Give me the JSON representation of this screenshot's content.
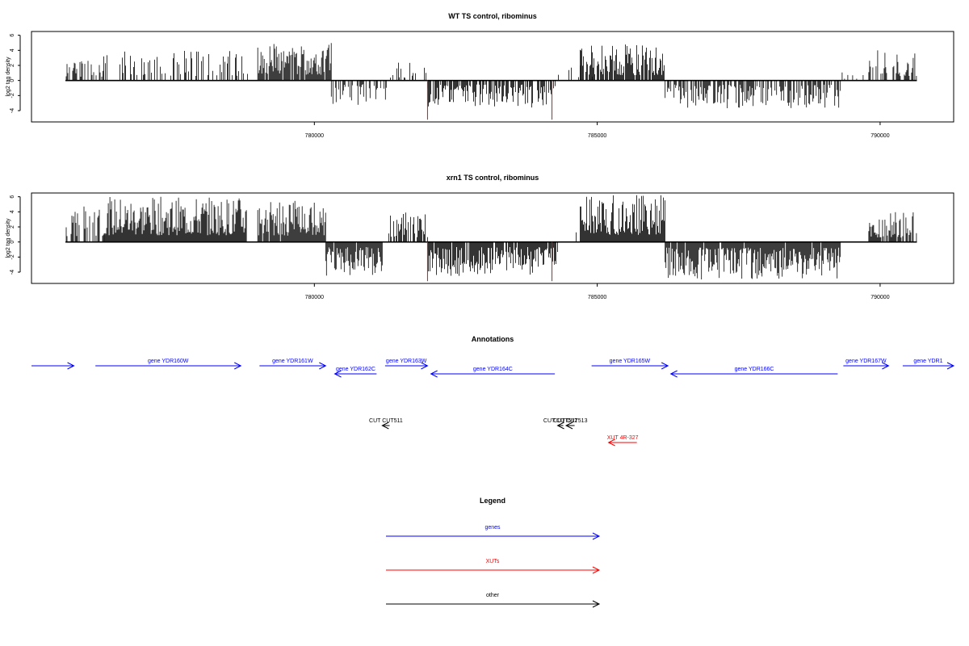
{
  "colors": {
    "gene": "#0000ff",
    "xut": "#ff0000",
    "other": "#000000",
    "bar": "#000000",
    "highlight": "#ff0000"
  },
  "chart_data": [
    {
      "type": "bar",
      "title": "WT TS control, ribominus",
      "ylabel": "log2 tag density",
      "xlim": [
        775000,
        791300
      ],
      "xrange_data": [
        775600,
        790650
      ],
      "ylim": [
        -5.5,
        6.5
      ],
      "yticks": [
        -4,
        -2,
        0,
        2,
        4,
        6
      ],
      "ytick_labels": [
        "-4",
        "-2",
        "0",
        "2",
        "4",
        "6"
      ],
      "xticks": [
        780000,
        785000,
        790000
      ],
      "xtick_labels": [
        "780000",
        "785000",
        "790000"
      ],
      "segments": [
        {
          "start": 775600,
          "end": 776250,
          "sign": 1,
          "max": 3.0,
          "density": 0.5,
          "seed": 11
        },
        {
          "start": 776250,
          "end": 779000,
          "sign": 1,
          "max": 4.0,
          "density": 0.28,
          "seed": 12
        },
        {
          "start": 779000,
          "end": 780300,
          "sign": 1,
          "max": 5.0,
          "density": 0.9,
          "seed": 13
        },
        {
          "start": 780300,
          "end": 781300,
          "sign": -1,
          "max": 3.3,
          "density": 0.55,
          "seed": 14
        },
        {
          "start": 781300,
          "end": 782000,
          "sign": 1,
          "max": 2.5,
          "density": 0.2,
          "seed": 15
        },
        {
          "start": 782000,
          "end": 784300,
          "sign": -1,
          "max": 3.6,
          "density": 0.75,
          "seed": 16
        },
        {
          "start": 784300,
          "end": 785000,
          "sign": 1,
          "max": 2.0,
          "density": 0.12,
          "seed": 17
        },
        {
          "start": 784700,
          "end": 786200,
          "sign": 1,
          "max": 4.8,
          "density": 0.85,
          "seed": 18
        },
        {
          "start": 786200,
          "end": 789300,
          "sign": -1,
          "max": 3.7,
          "density": 0.6,
          "seed": 19
        },
        {
          "start": 789300,
          "end": 789800,
          "sign": 1,
          "max": 1.5,
          "density": 0.12,
          "seed": 20
        },
        {
          "start": 789800,
          "end": 790650,
          "sign": 1,
          "max": 4.0,
          "density": 0.6,
          "seed": 21
        }
      ],
      "highlights": [
        {
          "x": 782000,
          "y": -5.2
        },
        {
          "x": 784200,
          "y": -5.2
        }
      ]
    },
    {
      "type": "bar",
      "title": "xrn1 TS control, ribominus",
      "ylabel": "log2 tag density",
      "xlim": [
        775000,
        791300
      ],
      "xrange_data": [
        775600,
        790650
      ],
      "ylim": [
        -5.5,
        6.5
      ],
      "yticks": [
        -4,
        -2,
        0,
        2,
        4,
        6
      ],
      "ytick_labels": [
        "-4",
        "-2",
        "0",
        "2",
        "4",
        "6"
      ],
      "xticks": [
        780000,
        785000,
        790000
      ],
      "xtick_labels": [
        "780000",
        "785000",
        "790000"
      ],
      "segments": [
        {
          "start": 775600,
          "end": 776300,
          "sign": 1,
          "max": 5.0,
          "density": 0.5,
          "seed": 31
        },
        {
          "start": 776300,
          "end": 778800,
          "sign": 1,
          "max": 6.0,
          "density": 1.0,
          "seed": 32
        },
        {
          "start": 779000,
          "end": 780200,
          "sign": 1,
          "max": 5.5,
          "density": 0.95,
          "seed": 33
        },
        {
          "start": 780200,
          "end": 781200,
          "sign": -1,
          "max": 4.5,
          "density": 0.95,
          "seed": 34
        },
        {
          "start": 781300,
          "end": 782000,
          "sign": 1,
          "max": 4.0,
          "density": 0.45,
          "seed": 35
        },
        {
          "start": 782000,
          "end": 784300,
          "sign": -1,
          "max": 4.5,
          "density": 0.9,
          "seed": 36
        },
        {
          "start": 784300,
          "end": 784700,
          "sign": 1,
          "max": 2.0,
          "density": 0.2,
          "seed": 37
        },
        {
          "start": 784700,
          "end": 786200,
          "sign": 1,
          "max": 6.3,
          "density": 1.0,
          "seed": 38
        },
        {
          "start": 786200,
          "end": 789300,
          "sign": -1,
          "max": 5.0,
          "density": 0.95,
          "seed": 39
        },
        {
          "start": 789800,
          "end": 790650,
          "sign": 1,
          "max": 4.0,
          "density": 0.85,
          "seed": 40
        }
      ],
      "highlights": [
        {
          "x": 782000,
          "y": -5.2
        },
        {
          "x": 784200,
          "y": -5.2
        }
      ]
    }
  ],
  "annotations": {
    "title": "Annotations",
    "xlim": [
      775000,
      791300
    ],
    "features": [
      {
        "label": "",
        "start": 775000,
        "end": 775750,
        "strand": "+",
        "type": "gene",
        "row": 0
      },
      {
        "label": "gene YDR160W",
        "start": 776130,
        "end": 778700,
        "strand": "+",
        "type": "gene",
        "row": 0
      },
      {
        "label": "gene YDR161W",
        "start": 779030,
        "end": 780200,
        "strand": "+",
        "type": "gene",
        "row": 0
      },
      {
        "label": "gene YDR162C",
        "start": 780360,
        "end": 781100,
        "strand": "-",
        "type": "gene",
        "row": 1
      },
      {
        "label": "gene YDR163W",
        "start": 781250,
        "end": 782000,
        "strand": "+",
        "type": "gene",
        "row": 0
      },
      {
        "label": "gene YDR164C",
        "start": 782060,
        "end": 784250,
        "strand": "-",
        "type": "gene",
        "row": 1
      },
      {
        "label": "gene YDR165W",
        "start": 784900,
        "end": 786250,
        "strand": "+",
        "type": "gene",
        "row": 0
      },
      {
        "label": "gene YDR166C",
        "start": 786300,
        "end": 789250,
        "strand": "-",
        "type": "gene",
        "row": 1
      },
      {
        "label": "gene YDR167W",
        "start": 789350,
        "end": 790150,
        "strand": "+",
        "type": "gene",
        "row": 0
      },
      {
        "label": "gene YDR1",
        "start": 790400,
        "end": 791300,
        "strand": "+",
        "type": "gene",
        "row": 0
      },
      {
        "label": "CUT CUT511",
        "start": 781200,
        "end": 781330,
        "strand": "-",
        "type": "other",
        "row": 2
      },
      {
        "label": "CUT CUT512",
        "start": 784300,
        "end": 784400,
        "strand": "-",
        "type": "other",
        "row": 2
      },
      {
        "label": "CUT CUT513",
        "start": 784450,
        "end": 784600,
        "strand": "-",
        "type": "other",
        "row": 2
      },
      {
        "label": "XUT 4R-327",
        "start": 785200,
        "end": 785700,
        "strand": "-",
        "type": "xut",
        "row": 3
      }
    ]
  },
  "legend": {
    "title": "Legend",
    "entries": [
      {
        "label": "genes",
        "type": "gene"
      },
      {
        "label": "XUTs",
        "type": "xut"
      },
      {
        "label": "other",
        "type": "other"
      }
    ]
  }
}
